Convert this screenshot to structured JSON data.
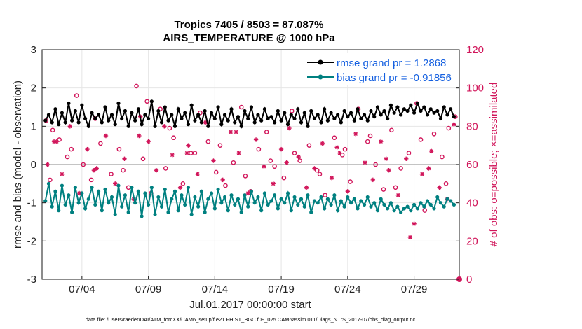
{
  "chart_data": {
    "type": "line",
    "title": "Tropics 7405 / 8503 = 87.087%",
    "subtitle": "AIRS_TEMPERATURE @ 1000 hPa",
    "xlabel": "Jul.01,2017 00:00:00 start",
    "ylabel": "rmse and bias (model - observation)",
    "y2label": "# of obs: o=possible; ×=assimilated",
    "footer": "data file: /Users/raeder/DAI/ATM_forcXX/CAM6_setup/f.e21.FHIST_BGC.f09_025.CAM6assim.011/Diags_NTrS_2017-07/obs_diag_output.nc",
    "xlim": [
      0,
      31.4
    ],
    "ylim": [
      -3,
      3
    ],
    "y2lim": [
      0,
      120
    ],
    "grid": true,
    "x_tick_values": [
      3,
      8,
      13,
      18,
      23,
      28
    ],
    "x_tick_labels": [
      "07/04",
      "07/09",
      "07/14",
      "07/19",
      "07/24",
      "07/29"
    ],
    "y_ticks": [
      "3",
      "2",
      "1",
      "0",
      "-1",
      "-2",
      "-3"
    ],
    "y_tick_values": [
      3,
      2,
      1,
      0,
      -1,
      -2,
      -3
    ],
    "y2_ticks": [
      "120",
      "100",
      "80",
      "60",
      "40",
      "20",
      "0"
    ],
    "y2_tick_values": [
      120,
      100,
      80,
      60,
      40,
      20,
      0
    ],
    "zero_line": 0,
    "legend": {
      "position": "top-right",
      "entries": [
        {
          "label": "rmse grand pr = 1.2868",
          "color": "#000000"
        },
        {
          "label": "bias grand pr = -0.91856",
          "color": "#008080"
        }
      ]
    },
    "colors": {
      "rmse": "#000000",
      "bias": "#008080",
      "obs": "#d1155a",
      "zero_line": "#b0b0b0",
      "grid": "#e6e6e6"
    },
    "series": [
      {
        "name": "rmse",
        "x": [
          0.25,
          0.5,
          0.75,
          1.0,
          1.25,
          1.5,
          1.75,
          2.0,
          2.25,
          2.5,
          2.75,
          3.0,
          3.25,
          3.5,
          3.75,
          4.0,
          4.25,
          4.5,
          4.75,
          5.0,
          5.25,
          5.5,
          5.75,
          6.0,
          6.25,
          6.5,
          6.75,
          7.0,
          7.25,
          7.5,
          7.75,
          8.0,
          8.25,
          8.5,
          8.75,
          9.0,
          9.25,
          9.5,
          9.75,
          10.0,
          10.25,
          10.5,
          10.75,
          11.0,
          11.25,
          11.5,
          11.75,
          12.0,
          12.25,
          12.5,
          12.75,
          13.0,
          13.25,
          13.5,
          13.75,
          14.0,
          14.25,
          14.5,
          14.75,
          15.0,
          15.25,
          15.5,
          15.75,
          16.0,
          16.25,
          16.5,
          16.75,
          17.0,
          17.25,
          17.5,
          17.75,
          18.0,
          18.25,
          18.5,
          18.75,
          19.0,
          19.25,
          19.5,
          19.75,
          20.0,
          20.25,
          20.5,
          20.75,
          21.0,
          21.25,
          21.5,
          21.75,
          22.0,
          22.25,
          22.5,
          22.75,
          23.0,
          23.25,
          23.5,
          23.75,
          24.0,
          24.25,
          24.5,
          24.75,
          25.0,
          25.25,
          25.5,
          25.75,
          26.0,
          26.25,
          26.5,
          26.75,
          27.0,
          27.25,
          27.5,
          27.75,
          28.0,
          28.25,
          28.5,
          28.75,
          29.0,
          29.25,
          29.5,
          29.75,
          30.0,
          30.25,
          30.5,
          30.75,
          31.0
        ],
        "values": [
          1.15,
          1.3,
          1.1,
          1.45,
          1.05,
          1.35,
          1.1,
          1.6,
          1.15,
          1.4,
          1.1,
          1.55,
          1.2,
          1.0,
          1.35,
          1.2,
          1.3,
          1.1,
          1.5,
          1.15,
          1.3,
          1.05,
          1.6,
          1.2,
          1.4,
          1.0,
          1.35,
          1.15,
          1.45,
          1.05,
          1.3,
          1.2,
          1.65,
          1.0,
          1.4,
          1.1,
          1.5,
          1.15,
          1.3,
          1.0,
          1.45,
          1.2,
          1.35,
          1.05,
          1.55,
          1.15,
          1.3,
          1.1,
          1.4,
          1.0,
          1.35,
          1.2,
          1.5,
          1.05,
          1.3,
          1.15,
          1.45,
          1.1,
          1.25,
          1.0,
          1.4,
          1.2,
          1.5,
          1.1,
          1.3,
          1.15,
          1.45,
          1.2,
          1.25,
          1.1,
          1.4,
          1.15,
          1.35,
          1.05,
          1.3,
          1.2,
          1.45,
          1.1,
          1.35,
          1.0,
          1.4,
          1.2,
          1.3,
          1.1,
          1.45,
          1.15,
          1.35,
          1.2,
          1.3,
          1.1,
          1.4,
          1.25,
          1.35,
          1.15,
          1.45,
          1.2,
          1.3,
          1.15,
          1.4,
          1.25,
          1.5,
          1.3,
          1.4,
          1.2,
          1.55,
          1.35,
          1.5,
          1.3,
          1.45,
          1.4,
          1.55,
          1.35,
          1.6,
          1.4,
          1.5,
          1.3,
          1.45,
          1.35,
          1.4,
          1.2,
          1.5,
          1.3,
          1.45,
          1.25
        ],
        "color": "#000000"
      },
      {
        "name": "bias",
        "x": [
          0.25,
          0.5,
          0.75,
          1.0,
          1.25,
          1.5,
          1.75,
          2.0,
          2.25,
          2.5,
          2.75,
          3.0,
          3.25,
          3.5,
          3.75,
          4.0,
          4.25,
          4.5,
          4.75,
          5.0,
          5.25,
          5.5,
          5.75,
          6.0,
          6.25,
          6.5,
          6.75,
          7.0,
          7.25,
          7.5,
          7.75,
          8.0,
          8.25,
          8.5,
          8.75,
          9.0,
          9.25,
          9.5,
          9.75,
          10.0,
          10.25,
          10.5,
          10.75,
          11.0,
          11.25,
          11.5,
          11.75,
          12.0,
          12.25,
          12.5,
          12.75,
          13.0,
          13.25,
          13.5,
          13.75,
          14.0,
          14.25,
          14.5,
          14.75,
          15.0,
          15.25,
          15.5,
          15.75,
          16.0,
          16.25,
          16.5,
          16.75,
          17.0,
          17.25,
          17.5,
          17.75,
          18.0,
          18.25,
          18.5,
          18.75,
          19.0,
          19.25,
          19.5,
          19.75,
          20.0,
          20.25,
          20.5,
          20.75,
          21.0,
          21.25,
          21.5,
          21.75,
          22.0,
          22.25,
          22.5,
          22.75,
          23.0,
          23.25,
          23.5,
          23.75,
          24.0,
          24.25,
          24.5,
          24.75,
          25.0,
          25.25,
          25.5,
          25.75,
          26.0,
          26.25,
          26.5,
          26.75,
          27.0,
          27.25,
          27.5,
          27.75,
          28.0,
          28.25,
          28.5,
          28.75,
          29.0,
          29.25,
          29.5,
          29.75,
          30.0,
          30.25,
          30.5,
          30.75,
          31.0
        ],
        "values": [
          -0.95,
          -0.5,
          -1.1,
          -0.7,
          -1.2,
          -0.55,
          -1.05,
          -0.8,
          -1.25,
          -0.6,
          -1.0,
          -0.75,
          -1.15,
          -0.9,
          -0.6,
          -1.05,
          -0.7,
          -1.2,
          -0.65,
          -1.0,
          -0.85,
          -1.3,
          -0.55,
          -1.1,
          -0.8,
          -1.25,
          -0.6,
          -1.0,
          -0.7,
          -1.35,
          -0.75,
          -1.05,
          -0.6,
          -1.3,
          -0.85,
          -1.1,
          -0.65,
          -1.25,
          -0.9,
          -0.7,
          -1.2,
          -0.8,
          -1.05,
          -0.6,
          -1.3,
          -0.85,
          -1.1,
          -0.7,
          -1.25,
          -0.9,
          -0.75,
          -1.15,
          -0.65,
          -1.0,
          -0.85,
          -1.2,
          -0.8,
          -1.05,
          -0.9,
          -1.25,
          -0.8,
          -1.1,
          -0.7,
          -1.0,
          -0.85,
          -1.2,
          -0.75,
          -1.05,
          -0.95,
          -0.8,
          -1.15,
          -0.9,
          -1.0,
          -0.75,
          -1.2,
          -0.85,
          -1.05,
          -0.9,
          -1.1,
          -0.8,
          -1.25,
          -0.95,
          -1.0,
          -0.85,
          -1.15,
          -0.9,
          -1.05,
          -0.8,
          -1.2,
          -0.95,
          -1.1,
          -0.85,
          -1.0,
          -0.9,
          -1.15,
          -0.95,
          -1.05,
          -0.85,
          -1.1,
          -1.0,
          -1.2,
          -0.9,
          -1.05,
          -1.15,
          -1.0,
          -1.2,
          -1.1,
          -1.25,
          -1.15,
          -1.1,
          -1.2,
          -1.05,
          -1.15,
          -1.0,
          -1.1,
          -0.95,
          -1.05,
          -1.15,
          -0.85,
          -1.0,
          -1.1,
          -0.9,
          -0.95,
          -1.05
        ],
        "color": "#008080"
      }
    ],
    "obs_possible": {
      "x": [
        0.3,
        0.8,
        1.3,
        1.9,
        2.6,
        3.1,
        3.7,
        4.4,
        5.2,
        5.8,
        6.5,
        7.1,
        7.6,
        8.2,
        8.9,
        9.3,
        9.9,
        10.6,
        11.2,
        11.9,
        12.5,
        13.1,
        13.8,
        14.4,
        15.0,
        15.7,
        16.3,
        16.9,
        17.5,
        18.2,
        18.8,
        19.4,
        20.1,
        20.7,
        21.3,
        22.0,
        22.6,
        23.2,
        23.8,
        24.5,
        25.1,
        25.7,
        26.3,
        27.0,
        27.6,
        28.2,
        28.8,
        29.5,
        30.1,
        30.6,
        31.1,
        0.6,
        2.2,
        4.0,
        6.1,
        7.9,
        9.6,
        11.5,
        13.4,
        15.3,
        17.2,
        19.0,
        20.9,
        22.8,
        24.7,
        26.6,
        28.5,
        30.4
      ],
      "values": [
        83,
        78,
        73,
        64,
        96,
        60,
        52,
        71,
        55,
        68,
        48,
        101,
        63,
        45,
        89,
        58,
        74,
        50,
        66,
        87,
        72,
        56,
        49,
        61,
        90,
        46,
        68,
        77,
        59,
        53,
        88,
        62,
        70,
        57,
        44,
        74,
        65,
        51,
        89,
        72,
        60,
        47,
        78,
        58,
        66,
        92,
        36,
        76,
        64,
        79,
        85,
        52,
        68,
        84,
        57,
        93,
        79,
        66,
        70,
        54,
        62,
        66,
        55,
        68,
        75,
        48,
        73,
        50
      ]
    },
    "obs_assimilated": {
      "x": [
        0.4,
        0.9,
        1.5,
        2.1,
        2.8,
        3.4,
        4.1,
        4.8,
        5.5,
        6.2,
        6.9,
        7.4,
        8.0,
        8.6,
        9.2,
        9.8,
        10.4,
        11.0,
        11.7,
        12.3,
        12.9,
        13.6,
        14.2,
        14.8,
        15.5,
        16.1,
        16.7,
        17.4,
        18.0,
        18.6,
        19.3,
        19.9,
        20.5,
        21.1,
        21.8,
        22.4,
        23.0,
        23.6,
        24.3,
        24.9,
        25.5,
        26.1,
        26.8,
        27.4,
        28.0,
        28.6,
        29.3,
        29.9,
        30.5,
        31.0,
        1.1,
        3.9,
        7.3,
        10.9,
        14.6,
        18.4,
        22.2,
        25.9,
        27.7,
        29.1
      ],
      "values": [
        60,
        72,
        55,
        80,
        45,
        68,
        58,
        75,
        50,
        63,
        42,
        85,
        72,
        57,
        80,
        65,
        48,
        70,
        55,
        82,
        62,
        52,
        77,
        66,
        45,
        73,
        59,
        50,
        68,
        79,
        64,
        48,
        58,
        71,
        53,
        66,
        46,
        76,
        61,
        52,
        72,
        57,
        44,
        63,
        29,
        55,
        67,
        48,
        42,
        81,
        72,
        57,
        75,
        66,
        77,
        61,
        69,
        63,
        22,
        58
      ]
    }
  }
}
